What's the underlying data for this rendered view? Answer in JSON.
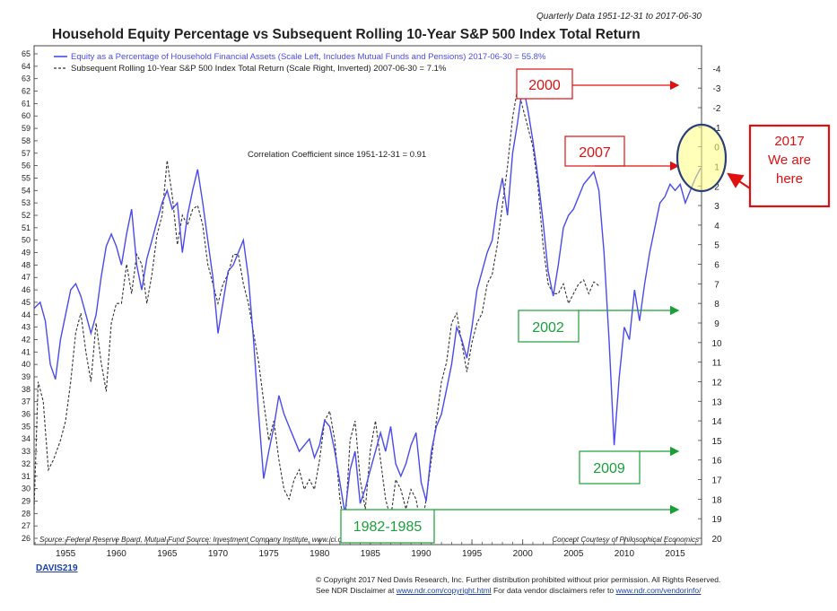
{
  "chart_data": {
    "type": "line",
    "subtitle": "Quarterly Data 1951-12-31 to 2017-06-30",
    "title": "Household Equity Percentage vs Subsequent Rolling 10-Year S&P 500 Index Total Return",
    "legend": [
      "Equity as a Percentage of Household Financial Assets (Scale Left, Includes Mutual Funds and Pensions) 2017-06-30 = 55.8%",
      "Subsequent Rolling 10-Year S&P 500 Index Total Return (Scale Right, Inverted) 2007-06-30 = 7.1%"
    ],
    "legend_placement": "top-left",
    "annotation": "Correlation Coefficient since 1951-12-31 = 0.91",
    "source": "Source: Federal Reserve Board, Mutual Fund Source: Investment Company Institute, www.ici.org, S&P Dow Jones Indices",
    "credit": "Concept Courtesy of Philosophical Economics",
    "x_ticks": [
      1955,
      1960,
      1965,
      1970,
      1975,
      1980,
      1985,
      1990,
      1995,
      2000,
      2005,
      2010,
      2015
    ],
    "xlim": [
      1951.9,
      2017.6
    ],
    "ylim_left": [
      26,
      65
    ],
    "ylim_right_inverted": [
      -4.75,
      20
    ],
    "y_ticks_left": [
      26,
      27,
      28,
      29,
      30,
      31,
      32,
      33,
      34,
      35,
      36,
      37,
      38,
      39,
      40,
      41,
      42,
      43,
      44,
      45,
      46,
      47,
      48,
      49,
      50,
      51,
      52,
      53,
      54,
      55,
      56,
      57,
      58,
      59,
      60,
      61,
      62,
      63,
      64,
      65
    ],
    "y_ticks_right": [
      -4,
      -3,
      -2,
      -1,
      0,
      1,
      2,
      3,
      4,
      5,
      6,
      7,
      8,
      9,
      10,
      11,
      12,
      13,
      14,
      15,
      16,
      17,
      18,
      19,
      20
    ],
    "grid": false,
    "series": [
      {
        "name": "Equity as a Percentage of Household Financial Assets",
        "axis": "left",
        "color": "#4a4aee",
        "style": "solid",
        "points": [
          [
            1951.9,
            44.5
          ],
          [
            1952.5,
            45
          ],
          [
            1953,
            43.5
          ],
          [
            1953.5,
            40
          ],
          [
            1954,
            38.8
          ],
          [
            1954.5,
            42
          ],
          [
            1955,
            44
          ],
          [
            1955.5,
            46
          ],
          [
            1956,
            46.5
          ],
          [
            1956.5,
            45.5
          ],
          [
            1957,
            44
          ],
          [
            1957.5,
            42.5
          ],
          [
            1958,
            44
          ],
          [
            1958.5,
            47
          ],
          [
            1959,
            49.5
          ],
          [
            1959.5,
            50.5
          ],
          [
            1960,
            49.5
          ],
          [
            1960.5,
            48
          ],
          [
            1961,
            50.5
          ],
          [
            1961.5,
            52.5
          ],
          [
            1962,
            48
          ],
          [
            1962.5,
            46
          ],
          [
            1963,
            48.5
          ],
          [
            1963.5,
            50
          ],
          [
            1964,
            51.5
          ],
          [
            1964.5,
            53
          ],
          [
            1965,
            54
          ],
          [
            1965.5,
            52.5
          ],
          [
            1966,
            53
          ],
          [
            1966.5,
            49
          ],
          [
            1967,
            52
          ],
          [
            1967.5,
            54
          ],
          [
            1968,
            55.7
          ],
          [
            1968.5,
            53
          ],
          [
            1969,
            50
          ],
          [
            1969.5,
            47
          ],
          [
            1970,
            42.5
          ],
          [
            1970.5,
            45
          ],
          [
            1971,
            47.5
          ],
          [
            1971.5,
            48
          ],
          [
            1972,
            49
          ],
          [
            1972.5,
            50
          ],
          [
            1973,
            47
          ],
          [
            1973.5,
            42
          ],
          [
            1974,
            36
          ],
          [
            1974.5,
            30.8
          ],
          [
            1975,
            33
          ],
          [
            1975.5,
            35
          ],
          [
            1976,
            37.5
          ],
          [
            1976.5,
            36
          ],
          [
            1977,
            35
          ],
          [
            1977.5,
            34
          ],
          [
            1978,
            33
          ],
          [
            1978.5,
            33.5
          ],
          [
            1979,
            34
          ],
          [
            1979.5,
            32.5
          ],
          [
            1980,
            33.5
          ],
          [
            1980.5,
            35.5
          ],
          [
            1981,
            35
          ],
          [
            1981.5,
            33
          ],
          [
            1982,
            30.5
          ],
          [
            1982.5,
            28
          ],
          [
            1983,
            31.5
          ],
          [
            1983.5,
            33
          ],
          [
            1984,
            28.8
          ],
          [
            1984.5,
            30
          ],
          [
            1985,
            31.5
          ],
          [
            1985.5,
            33
          ],
          [
            1986,
            34.5
          ],
          [
            1986.5,
            33
          ],
          [
            1987,
            35
          ],
          [
            1987.5,
            32
          ],
          [
            1988,
            31
          ],
          [
            1988.5,
            32
          ],
          [
            1989,
            33.5
          ],
          [
            1989.5,
            34.5
          ],
          [
            1990,
            30.5
          ],
          [
            1990.5,
            29
          ],
          [
            1991,
            33
          ],
          [
            1991.5,
            35
          ],
          [
            1992,
            36
          ],
          [
            1992.5,
            38
          ],
          [
            1993,
            40
          ],
          [
            1993.5,
            43
          ],
          [
            1994,
            42
          ],
          [
            1994.5,
            40.5
          ],
          [
            1995,
            43
          ],
          [
            1995.5,
            46
          ],
          [
            1996,
            47.5
          ],
          [
            1996.5,
            49
          ],
          [
            1997,
            50
          ],
          [
            1997.5,
            53
          ],
          [
            1998,
            55
          ],
          [
            1998.5,
            52
          ],
          [
            1999,
            57
          ],
          [
            1999.5,
            59.5
          ],
          [
            2000,
            62.5
          ],
          [
            2000.5,
            60.5
          ],
          [
            2001,
            58
          ],
          [
            2001.5,
            55
          ],
          [
            2002,
            51.5
          ],
          [
            2002.5,
            47.5
          ],
          [
            2003,
            45.5
          ],
          [
            2003.5,
            48
          ],
          [
            2004,
            51
          ],
          [
            2004.5,
            52
          ],
          [
            2005,
            52.5
          ],
          [
            2005.5,
            53.5
          ],
          [
            2006,
            54.5
          ],
          [
            2006.5,
            55
          ],
          [
            2007,
            55.5
          ],
          [
            2007.5,
            54
          ],
          [
            2008,
            49
          ],
          [
            2008.5,
            42
          ],
          [
            2009,
            33.5
          ],
          [
            2009.5,
            39
          ],
          [
            2010,
            43
          ],
          [
            2010.5,
            42
          ],
          [
            2011,
            46
          ],
          [
            2011.5,
            43.5
          ],
          [
            2012,
            46.5
          ],
          [
            2012.5,
            49
          ],
          [
            2013,
            51
          ],
          [
            2013.5,
            53
          ],
          [
            2014,
            53.5
          ],
          [
            2014.5,
            54.5
          ],
          [
            2015,
            54
          ],
          [
            2015.5,
            54.5
          ],
          [
            2016,
            53
          ],
          [
            2016.5,
            54
          ],
          [
            2017,
            55
          ],
          [
            2017.5,
            55.8
          ]
        ]
      },
      {
        "name": "Subsequent Rolling 10-Year S&P 500 Index Total Return",
        "axis": "right",
        "color": "#333333",
        "style": "dashed",
        "points": [
          [
            1951.9,
            18.5
          ],
          [
            1952.3,
            12
          ],
          [
            1952.8,
            13
          ],
          [
            1953.3,
            16.5
          ],
          [
            1953.8,
            16
          ],
          [
            1954.5,
            15
          ],
          [
            1955,
            14
          ],
          [
            1955.5,
            12
          ],
          [
            1956,
            9.5
          ],
          [
            1956.5,
            8.5
          ],
          [
            1957,
            10.5
          ],
          [
            1957.5,
            12
          ],
          [
            1958,
            9
          ],
          [
            1958.5,
            11
          ],
          [
            1959,
            12.5
          ],
          [
            1959.5,
            9
          ],
          [
            1960,
            8
          ],
          [
            1960.5,
            8
          ],
          [
            1961,
            6
          ],
          [
            1961.5,
            7.5
          ],
          [
            1962,
            5.5
          ],
          [
            1962.5,
            6
          ],
          [
            1963,
            8
          ],
          [
            1963.5,
            6.5
          ],
          [
            1964,
            4.5
          ],
          [
            1964.5,
            3.5
          ],
          [
            1965,
            0.7
          ],
          [
            1965.5,
            2.5
          ],
          [
            1966,
            5
          ],
          [
            1966.5,
            3.5
          ],
          [
            1967,
            4
          ],
          [
            1967.5,
            3.2
          ],
          [
            1968,
            3
          ],
          [
            1968.5,
            4
          ],
          [
            1969,
            6
          ],
          [
            1969.5,
            7
          ],
          [
            1970,
            8
          ],
          [
            1970.5,
            7
          ],
          [
            1971,
            6.5
          ],
          [
            1971.5,
            5.5
          ],
          [
            1972,
            5.5
          ],
          [
            1972.5,
            7
          ],
          [
            1973,
            8
          ],
          [
            1973.5,
            9.5
          ],
          [
            1974,
            11
          ],
          [
            1974.5,
            13
          ],
          [
            1975,
            15
          ],
          [
            1975.5,
            14
          ],
          [
            1976,
            16
          ],
          [
            1976.5,
            17.5
          ],
          [
            1977,
            18
          ],
          [
            1977.5,
            17
          ],
          [
            1978,
            16.5
          ],
          [
            1978.5,
            17.5
          ],
          [
            1979,
            17
          ],
          [
            1979.5,
            17.5
          ],
          [
            1980,
            16
          ],
          [
            1980.5,
            14
          ],
          [
            1981,
            13.5
          ],
          [
            1981.5,
            15
          ],
          [
            1982,
            18
          ],
          [
            1982.5,
            19.5
          ],
          [
            1983,
            15
          ],
          [
            1983.5,
            14
          ],
          [
            1984,
            17
          ],
          [
            1984.5,
            18.5
          ],
          [
            1985,
            15.5
          ],
          [
            1985.5,
            14
          ],
          [
            1986,
            16
          ],
          [
            1986.5,
            18
          ],
          [
            1987,
            19
          ],
          [
            1987.5,
            17
          ],
          [
            1988,
            17.5
          ],
          [
            1988.5,
            18.5
          ],
          [
            1989,
            17.5
          ],
          [
            1989.5,
            18
          ],
          [
            1990,
            19.5
          ],
          [
            1990.5,
            18
          ],
          [
            1991,
            16
          ],
          [
            1991.5,
            14
          ],
          [
            1992,
            12
          ],
          [
            1992.5,
            11
          ],
          [
            1993,
            9
          ],
          [
            1993.5,
            8.5
          ],
          [
            1994,
            10
          ],
          [
            1994.5,
            11.5
          ],
          [
            1995,
            10
          ],
          [
            1995.5,
            9
          ],
          [
            1996,
            8.5
          ],
          [
            1996.5,
            7
          ],
          [
            1997,
            6.5
          ],
          [
            1997.5,
            5
          ],
          [
            1998,
            3
          ],
          [
            1998.5,
            1
          ],
          [
            1999,
            -1.5
          ],
          [
            1999.5,
            -3
          ],
          [
            2000,
            -2
          ],
          [
            2000.5,
            -1
          ],
          [
            2001,
            0
          ],
          [
            2001.5,
            2
          ],
          [
            2002,
            5
          ],
          [
            2002.5,
            7
          ],
          [
            2003,
            7.5
          ],
          [
            2003.5,
            7.5
          ],
          [
            2004,
            7
          ],
          [
            2004.5,
            8
          ],
          [
            2005,
            7.5
          ],
          [
            2005.5,
            7
          ],
          [
            2006,
            6.8
          ],
          [
            2006.5,
            7.5
          ],
          [
            2007,
            6.9
          ],
          [
            2007.5,
            7.1
          ]
        ]
      }
    ]
  },
  "callouts": [
    {
      "label": "2000",
      "color": "#e01010"
    },
    {
      "label": "2007",
      "color": "#e01010"
    },
    {
      "label": "2017 We are here",
      "color": "#e01010"
    },
    {
      "label": "2002",
      "color": "#1aa038"
    },
    {
      "label": "2009",
      "color": "#1aa038"
    },
    {
      "label": "1982-1985",
      "color": "#1aa038"
    }
  ],
  "footer": {
    "code": "DAVIS219",
    "copyright": "© Copyright 2017 Ned Davis Research, Inc. Further distribution prohibited without prior permission. All Rights Reserved.",
    "disclaimer_pre": "See NDR Disclaimer at ",
    "disclaimer_link": "www.ndr.com/copyright.html",
    "disclaimer_mid": "  For data vendor disclaimers refer to ",
    "vendor_link": "www.ndr.com/vendorinfo/"
  }
}
